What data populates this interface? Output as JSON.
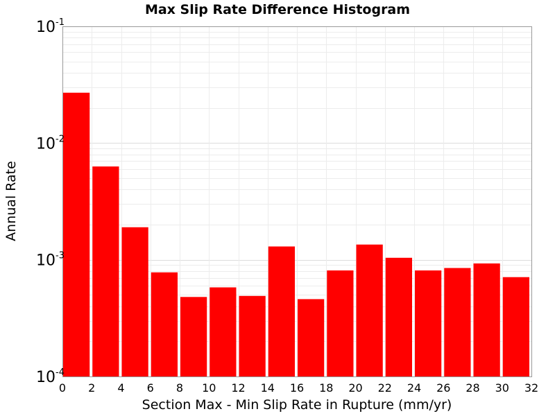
{
  "chart_data": {
    "type": "bar",
    "title": "Max Slip Rate Difference Histogram",
    "xlabel": "Section Max - Min Slip Rate in Rupture (mm/yr)",
    "ylabel": "Annual Rate",
    "xlim": [
      0,
      32
    ],
    "ylim": [
      0.0001,
      0.1
    ],
    "y_scale": "log",
    "x_ticks": [
      "0",
      "2",
      "4",
      "6",
      "8",
      "10",
      "12",
      "14",
      "16",
      "18",
      "20",
      "22",
      "24",
      "26",
      "28",
      "30",
      "32"
    ],
    "y_ticks": [
      {
        "base": "10",
        "exp": "-4"
      },
      {
        "base": "10",
        "exp": "-3"
      },
      {
        "base": "10",
        "exp": "-2"
      },
      {
        "base": "10",
        "exp": "-1"
      }
    ],
    "bin_width": 2,
    "bin_starts": [
      0,
      2,
      4,
      6,
      8,
      10,
      12,
      14,
      16,
      18,
      20,
      22,
      24,
      26,
      28,
      30
    ],
    "values": [
      0.027,
      0.0063,
      0.0019,
      0.00078,
      0.00048,
      0.00058,
      0.00049,
      0.0013,
      0.00046,
      0.00081,
      0.00135,
      0.00104,
      0.00081,
      0.00085,
      0.00093,
      0.00071
    ],
    "bar_color": "#ff0000",
    "grid": true
  }
}
